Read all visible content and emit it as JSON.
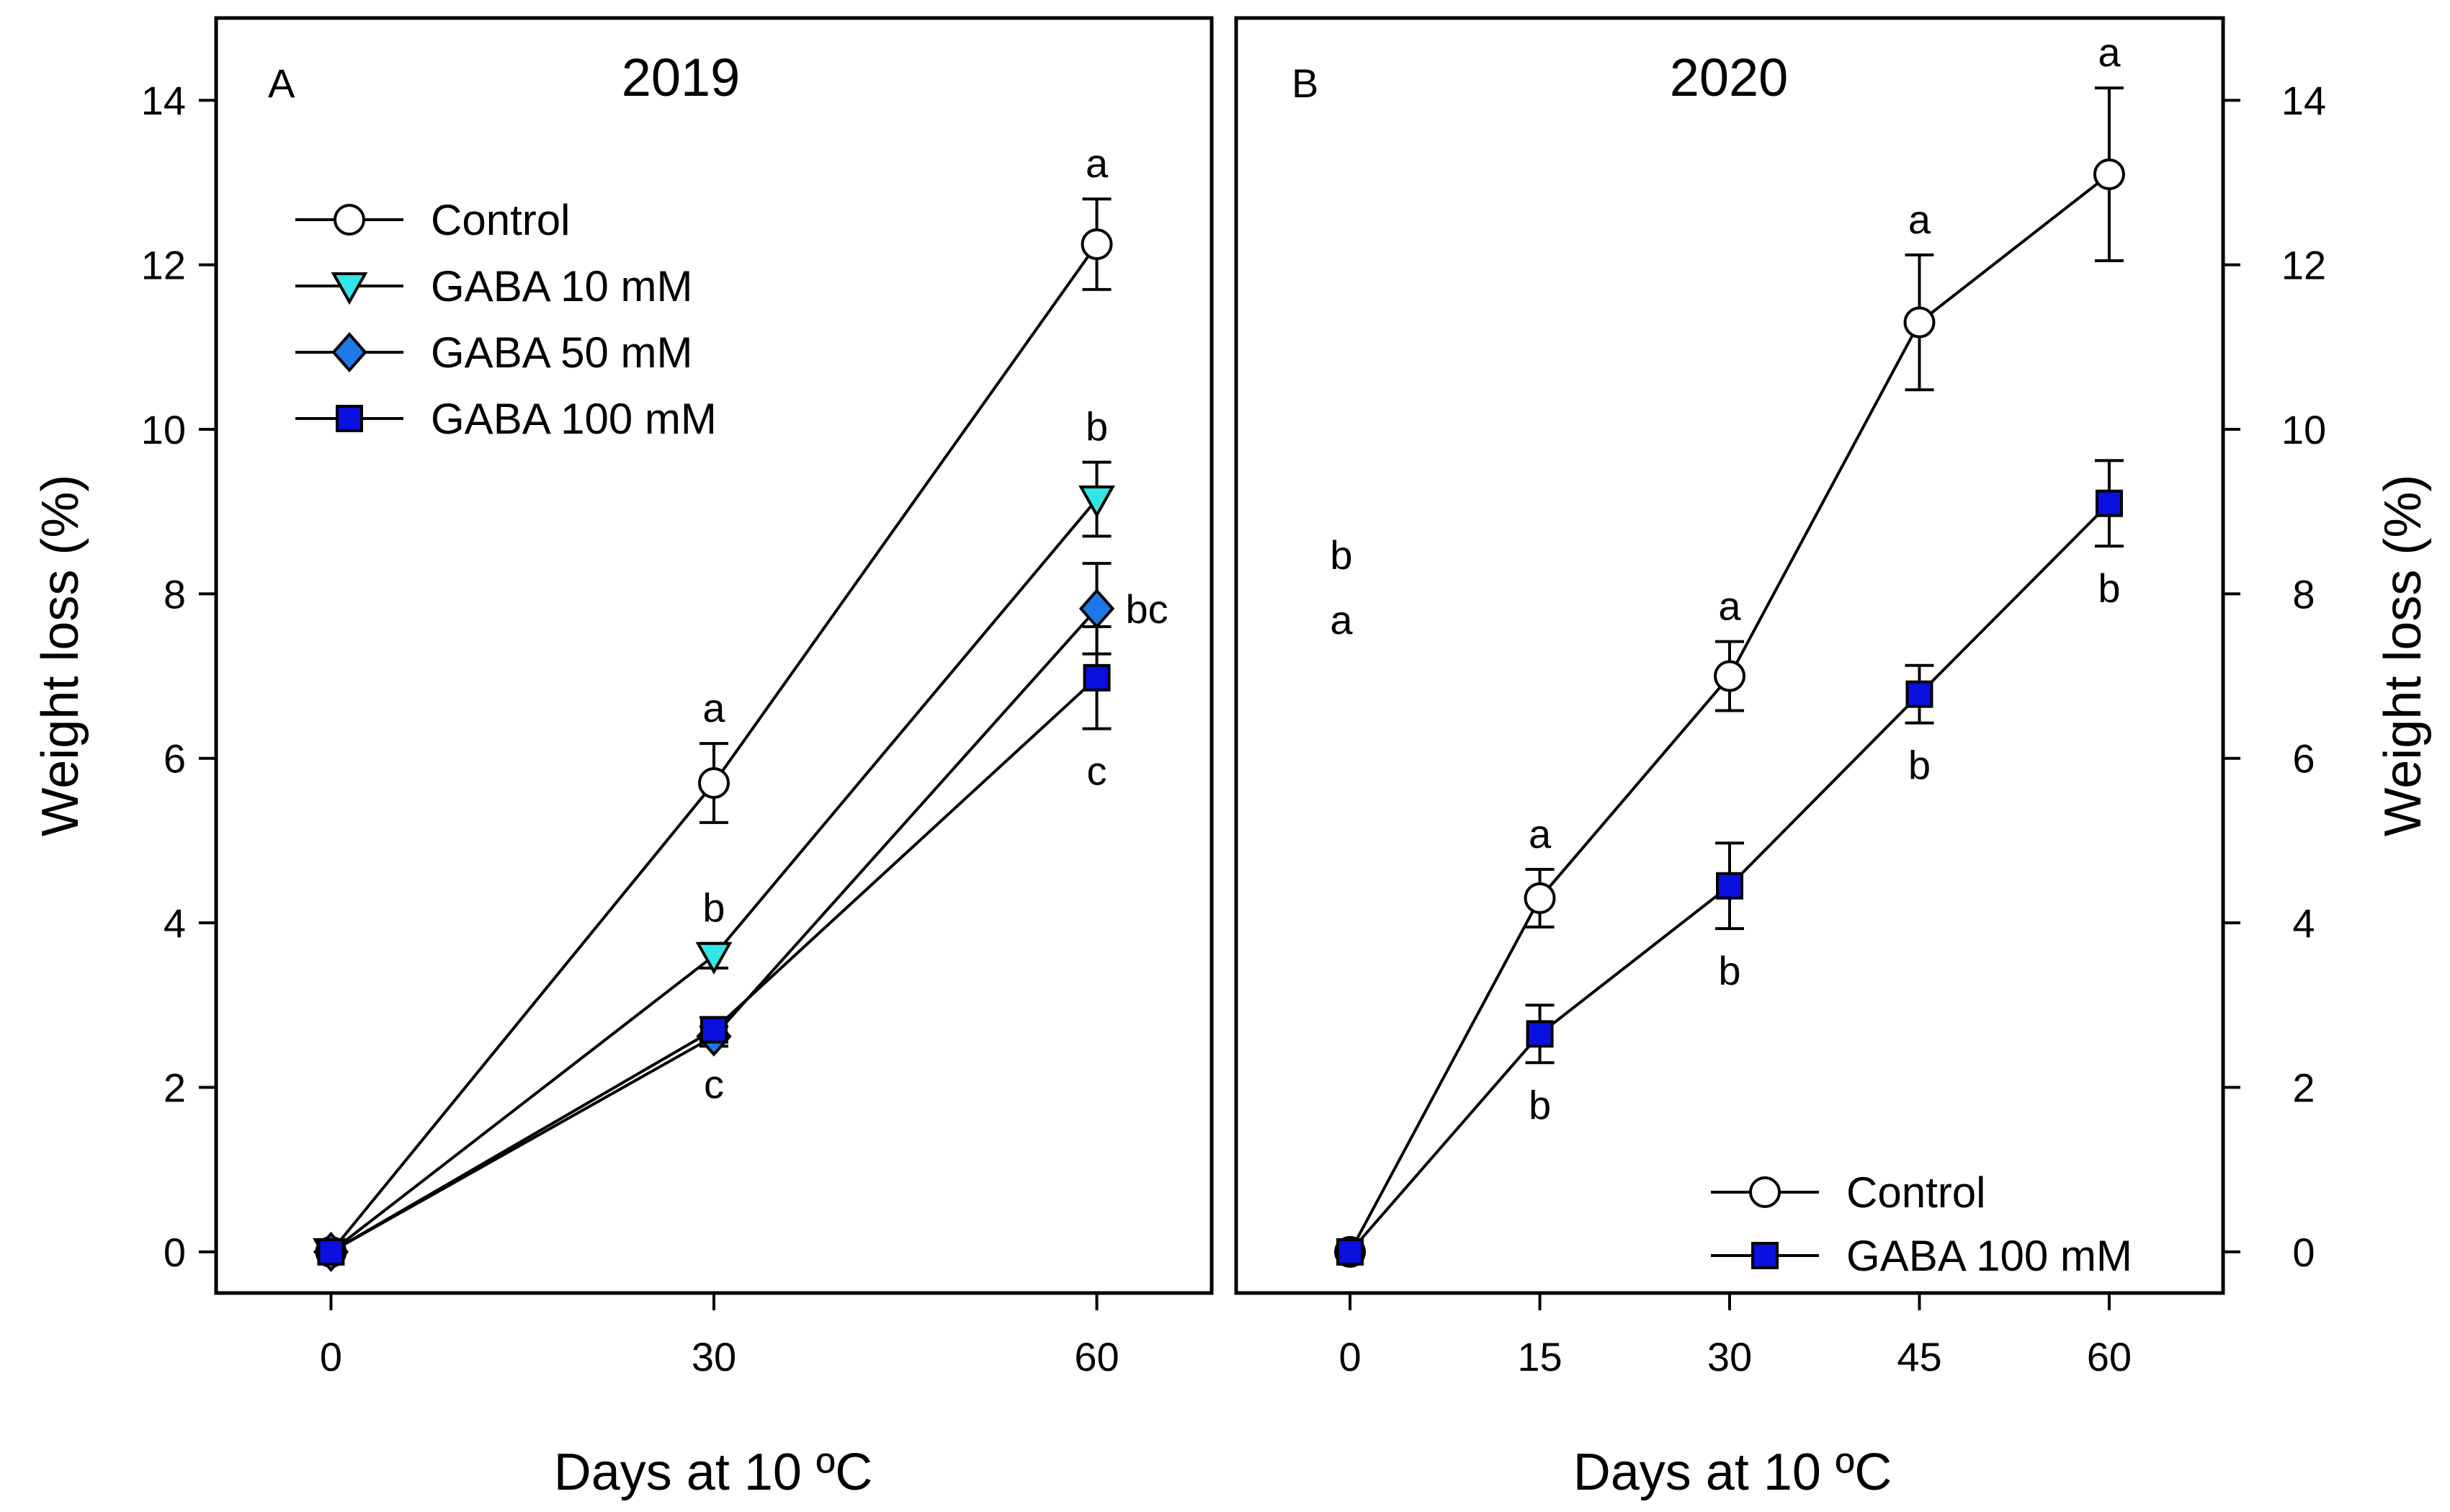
{
  "chart_data": [
    {
      "type": "line",
      "panel_label": "A",
      "title": "2019",
      "xlabel": "Days at 10 ºC",
      "ylabel": "Weight loss (%)",
      "x": [
        0,
        30,
        60
      ],
      "xlim": [
        -9,
        69
      ],
      "ylim": [
        -0.5,
        15
      ],
      "xticks": [
        "0",
        "30",
        "60"
      ],
      "yticks": [
        "0",
        "2",
        "4",
        "6",
        "8",
        "10",
        "12",
        "14"
      ],
      "legend_position": "upper-left",
      "series": [
        {
          "name": "Control",
          "marker": "circle",
          "color": "#ffffff",
          "values": [
            0,
            5.7,
            12.25
          ],
          "errors": [
            0.05,
            0.48,
            0.55
          ],
          "letters": [
            "",
            "a",
            "a"
          ],
          "letter_side": [
            "",
            "above",
            "above"
          ]
        },
        {
          "name": "GABA 10 mM",
          "marker": "triangle-down",
          "color": "#33e6e6",
          "values": [
            0,
            3.6,
            9.15
          ],
          "errors": [
            0.05,
            0.15,
            0.45
          ],
          "letters": [
            "",
            "b",
            "b"
          ],
          "letter_side": [
            "",
            "above",
            "above"
          ]
        },
        {
          "name": "GABA 50 mM",
          "marker": "diamond",
          "color": "#1f78e8",
          "values": [
            0,
            2.62,
            7.82
          ],
          "errors": [
            0.05,
            0.12,
            0.55
          ],
          "letters": [
            "",
            "",
            "bc"
          ],
          "letter_side": [
            "",
            "",
            "right"
          ]
        },
        {
          "name": "GABA 100 mM",
          "marker": "square",
          "color": "#0a10e0",
          "values": [
            0,
            2.7,
            6.98
          ],
          "errors": [
            0.05,
            0.15,
            0.62
          ],
          "letters": [
            "",
            "c",
            "c"
          ],
          "letter_side": [
            "",
            "below",
            "below"
          ]
        }
      ]
    },
    {
      "type": "line",
      "panel_label": "B",
      "title": "2020",
      "xlabel": "Days at 10 ºC",
      "ylabel": "Weight loss (%)",
      "x": [
        0,
        15,
        30,
        45,
        60
      ],
      "xlim": [
        -9,
        69
      ],
      "ylim": [
        -0.5,
        15
      ],
      "xticks": [
        "0",
        "15",
        "30",
        "45",
        "60"
      ],
      "yticks": [
        "0",
        "2",
        "4",
        "6",
        "8",
        "10",
        "12",
        "14"
      ],
      "legend_position": "lower-right",
      "stray_letters": [
        "b",
        "a"
      ],
      "series": [
        {
          "name": "Control",
          "marker": "circle",
          "color": "#ffffff",
          "values": [
            0,
            4.3,
            7.0,
            11.3,
            13.1
          ],
          "errors": [
            0.05,
            0.35,
            0.42,
            0.82,
            1.05
          ],
          "letters": [
            "",
            "a",
            "a",
            "a",
            "a"
          ],
          "letter_side": [
            "",
            "above",
            "above",
            "above",
            "above"
          ]
        },
        {
          "name": "GABA 100 mM",
          "marker": "square",
          "color": "#0a10e0",
          "values": [
            0,
            2.65,
            4.45,
            6.78,
            9.1
          ],
          "errors": [
            0.05,
            0.35,
            0.52,
            0.35,
            0.52
          ],
          "letters": [
            "",
            "b",
            "b",
            "b",
            "b"
          ],
          "letter_side": [
            "",
            "below",
            "below",
            "below",
            "below"
          ]
        }
      ]
    }
  ]
}
